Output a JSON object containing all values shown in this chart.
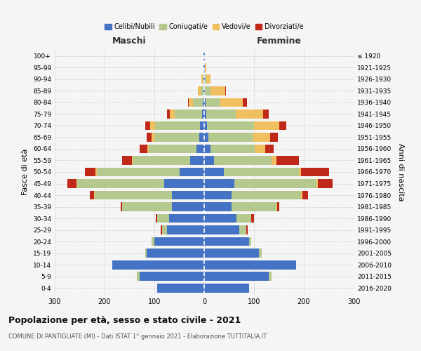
{
  "age_groups": [
    "0-4",
    "5-9",
    "10-14",
    "15-19",
    "20-24",
    "25-29",
    "30-34",
    "35-39",
    "40-44",
    "45-49",
    "50-54",
    "55-59",
    "60-64",
    "65-69",
    "70-74",
    "75-79",
    "80-84",
    "85-89",
    "90-94",
    "95-99",
    "100+"
  ],
  "birth_years": [
    "2016-2020",
    "2011-2015",
    "2006-2010",
    "2001-2005",
    "1996-2000",
    "1991-1995",
    "1986-1990",
    "1981-1985",
    "1976-1980",
    "1971-1975",
    "1966-1970",
    "1961-1965",
    "1956-1960",
    "1951-1955",
    "1946-1950",
    "1941-1945",
    "1936-1940",
    "1931-1935",
    "1926-1930",
    "1921-1925",
    "≤ 1920"
  ],
  "colors": {
    "celibi": "#4472c4",
    "coniugati": "#b5c98e",
    "vedovi": "#f0c060",
    "divorziati": "#c0281a"
  },
  "maschi": {
    "celibi": [
      95,
      130,
      185,
      115,
      100,
      75,
      70,
      65,
      65,
      80,
      50,
      28,
      16,
      10,
      8,
      4,
      3,
      2,
      1,
      1,
      1
    ],
    "coniugati": [
      0,
      5,
      0,
      3,
      5,
      10,
      25,
      100,
      155,
      175,
      165,
      115,
      95,
      90,
      90,
      55,
      20,
      5,
      2,
      0,
      0
    ],
    "vedovi": [
      0,
      0,
      0,
      0,
      0,
      0,
      0,
      0,
      1,
      2,
      3,
      2,
      3,
      5,
      10,
      10,
      8,
      5,
      2,
      1,
      0
    ],
    "divorziati": [
      0,
      0,
      0,
      0,
      0,
      2,
      2,
      3,
      8,
      18,
      22,
      20,
      15,
      10,
      10,
      5,
      2,
      0,
      0,
      0,
      0
    ]
  },
  "femmine": {
    "celibi": [
      90,
      130,
      185,
      110,
      90,
      70,
      65,
      55,
      55,
      60,
      40,
      20,
      12,
      8,
      5,
      4,
      3,
      2,
      1,
      1,
      1
    ],
    "coniugati": [
      0,
      5,
      0,
      5,
      5,
      15,
      30,
      90,
      140,
      165,
      150,
      115,
      90,
      90,
      95,
      60,
      30,
      10,
      3,
      1,
      0
    ],
    "vedovi": [
      0,
      0,
      0,
      0,
      0,
      0,
      0,
      1,
      2,
      3,
      5,
      10,
      20,
      35,
      50,
      55,
      45,
      30,
      8,
      2,
      1
    ],
    "divorziati": [
      0,
      0,
      0,
      0,
      0,
      2,
      5,
      5,
      12,
      30,
      55,
      45,
      18,
      15,
      15,
      10,
      8,
      2,
      0,
      0,
      0
    ]
  },
  "title": "Popolazione per età, sesso e stato civile - 2021",
  "subtitle": "COMUNE DI PANTIGLIATE (MI) - Dati ISTAT 1° gennaio 2021 - Elaborazione TUTTITALIA.IT",
  "header_left": "Maschi",
  "header_right": "Femmine",
  "ylabel_left": "Fasce di età",
  "ylabel_right": "Anni di nascita",
  "xlim": 300,
  "bg_color": "#f5f5f5",
  "grid_color": "#cccccc",
  "legend_labels": [
    "Celibi/Nubili",
    "Coniugati/e",
    "Vedovi/e",
    "Divorziati/e"
  ]
}
